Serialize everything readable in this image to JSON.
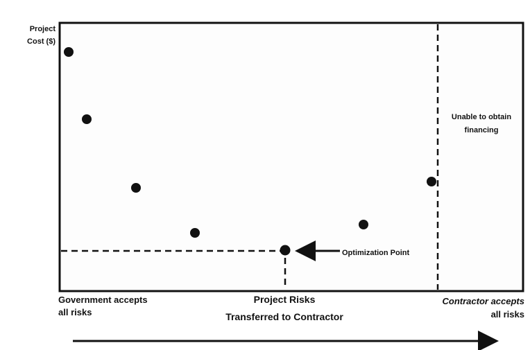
{
  "y_label": [
    "Project",
    "Cost ($)"
  ],
  "right_zone_label": [
    "Unable to obtain",
    "financing"
  ],
  "annotation": "Optimization Point",
  "left_label": [
    "Government accepts",
    "all risks"
  ],
  "center_label": [
    "Project Risks",
    "Transferred to Contractor"
  ],
  "right_label": [
    "Contractor accepts",
    "all risks"
  ]
}
